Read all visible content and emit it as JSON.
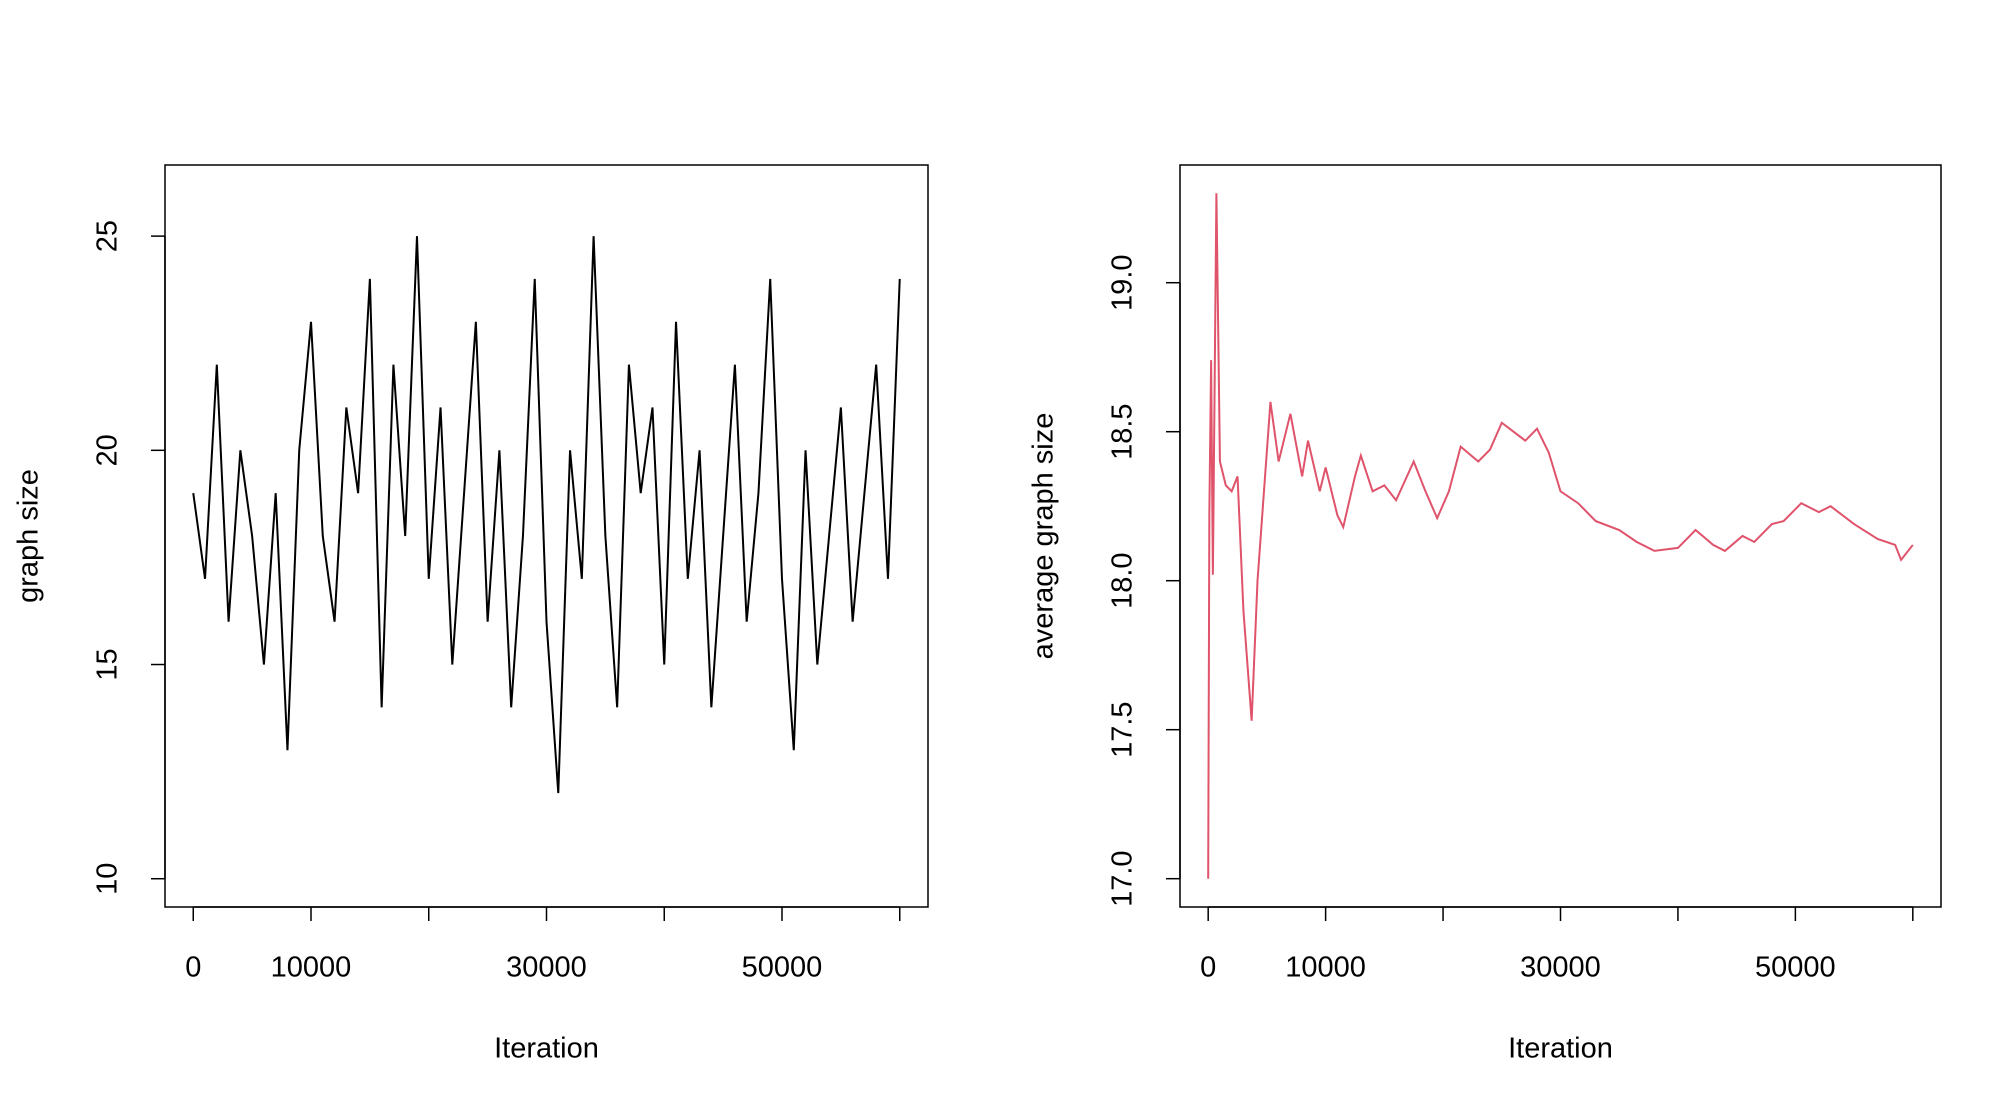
{
  "chart_data": [
    {
      "type": "line",
      "x_label": "Iteration",
      "y_label": "graph size",
      "color": "#000000",
      "x": [
        0,
        1000,
        2000,
        3000,
        4000,
        5000,
        6000,
        7000,
        8000,
        9000,
        10000,
        11000,
        12000,
        13000,
        14000,
        15000,
        16000,
        17000,
        18000,
        19000,
        20000,
        21000,
        22000,
        23000,
        24000,
        25000,
        26000,
        27000,
        28000,
        29000,
        30000,
        31000,
        32000,
        33000,
        34000,
        35000,
        36000,
        37000,
        38000,
        39000,
        40000,
        41000,
        42000,
        43000,
        44000,
        45000,
        46000,
        47000,
        48000,
        49000,
        50000,
        51000,
        52000,
        53000,
        54000,
        55000,
        56000,
        57000,
        58000,
        59000,
        60000
      ],
      "values": [
        19,
        17,
        22,
        16,
        20,
        18,
        15,
        19,
        13,
        20,
        23,
        18,
        16,
        21,
        19,
        24,
        14,
        22,
        18,
        25,
        17,
        21,
        15,
        19,
        23,
        16,
        20,
        14,
        18,
        24,
        16,
        12,
        20,
        17,
        25,
        18,
        14,
        22,
        19,
        21,
        15,
        23,
        17,
        20,
        14,
        18,
        22,
        16,
        19,
        24,
        17,
        13,
        20,
        15,
        18,
        21,
        16,
        19,
        22,
        17,
        24
      ],
      "xlim": [
        -2400,
        62400
      ],
      "ylim": [
        9.34,
        26.66
      ],
      "xticks": [
        0,
        10000,
        30000,
        50000
      ],
      "xticks_unlabeled": [
        20000,
        40000,
        60000
      ],
      "yticks": [
        10,
        15,
        20,
        25
      ]
    },
    {
      "type": "line",
      "x_label": "Iteration",
      "y_label": "average graph size",
      "color": "#DF536B",
      "x": [
        0,
        100,
        250,
        400,
        700,
        1000,
        1500,
        2000,
        2500,
        3000,
        3700,
        4200,
        5300,
        6000,
        7000,
        8000,
        8500,
        9500,
        10000,
        11000,
        11500,
        12500,
        13000,
        14000,
        15000,
        16000,
        17500,
        18500,
        19500,
        20500,
        21500,
        23000,
        24000,
        25000,
        26000,
        27000,
        28000,
        29000,
        30000,
        31500,
        33000,
        35000,
        36500,
        38000,
        40000,
        41500,
        43000,
        44000,
        45500,
        46500,
        48000,
        49000,
        50500,
        52000,
        53000,
        55000,
        57000,
        58500,
        59000,
        60000
      ],
      "values": [
        17.0,
        18.23,
        18.74,
        18.02,
        19.3,
        18.4,
        18.32,
        18.3,
        18.35,
        17.9,
        17.53,
        18.0,
        18.6,
        18.4,
        18.56,
        18.35,
        18.47,
        18.3,
        18.38,
        18.22,
        18.18,
        18.35,
        18.42,
        18.3,
        18.32,
        18.27,
        18.4,
        18.3,
        18.21,
        18.3,
        18.45,
        18.4,
        18.44,
        18.53,
        18.5,
        18.47,
        18.51,
        18.43,
        18.3,
        18.26,
        18.2,
        18.17,
        18.13,
        18.1,
        18.11,
        18.17,
        18.12,
        18.1,
        18.15,
        18.13,
        18.19,
        18.2,
        18.26,
        18.23,
        18.25,
        18.19,
        18.14,
        18.12,
        18.07,
        18.12
      ],
      "xlim": [
        -2400,
        62400
      ],
      "ylim": [
        16.905,
        19.395
      ],
      "xticks": [
        0,
        10000,
        30000,
        50000
      ],
      "xticks_unlabeled": [
        20000,
        40000,
        60000
      ],
      "yticks": [
        {
          "value": 17,
          "label": "17.0"
        },
        {
          "value": 17.5,
          "label": "17.5"
        },
        {
          "value": 18,
          "label": "18.0"
        },
        {
          "value": 18.5,
          "label": "18.5"
        },
        {
          "value": 19,
          "label": "19.0"
        }
      ]
    }
  ]
}
